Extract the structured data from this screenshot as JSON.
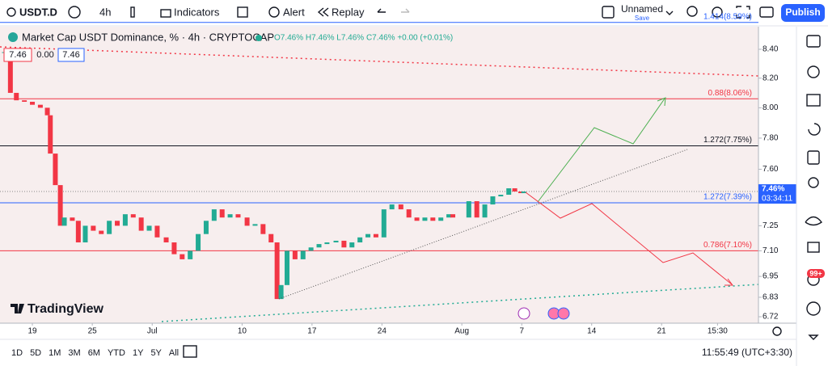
{
  "toolbar": {
    "symbol": "USDT.D",
    "interval": "4h",
    "indicators": "Indicators",
    "alert": "Alert",
    "replay": "Replay",
    "layout_name": "Unnamed",
    "save": "Save",
    "publish": "Publish"
  },
  "legend": {
    "title": "Market Cap USDT Dominance, % · 4h · CRYPTOCAP",
    "ohlc": "O7.46% H7.46% L7.46% C7.46% +0.00 (+0.01%)",
    "boxes": [
      "7.46",
      "0.00",
      "7.46"
    ]
  },
  "chart_data": {
    "type": "candlestick",
    "log_scale": true,
    "x": [
      -2.8,
      -2.2,
      -1.6,
      -0.8,
      0,
      0.8,
      1.5,
      1.8,
      2.3,
      2.8,
      3.2,
      4.0,
      4.6,
      5.3,
      6.1,
      6.9,
      7.7,
      8.5,
      9.3,
      10.1,
      10.9,
      11.7,
      12.5,
      13.4,
      14.2,
      15.0,
      15.8,
      16.6,
      17.4,
      18.2,
      19.0,
      19.8,
      20.6,
      21.5,
      22.3,
      23.1,
      23.9,
      24.5,
      24.9,
      25.5,
      26.3,
      27.1,
      27.9,
      28.7,
      29.5,
      30.4,
      31.2,
      32.0,
      32.8,
      33.6,
      34.4,
      35.2,
      36.0,
      36.9,
      37.7,
      38.5,
      39.3,
      40.1,
      40.9,
      41.7,
      42.1,
      43.7,
      44.5,
      45.3,
      46.1,
      46.9,
      47.7,
      48.3,
      48.9,
      49.2
    ],
    "values": [
      8.38,
      8.1,
      8.05,
      8.04,
      8.02,
      8.0,
      7.95,
      7.7,
      7.5,
      7.25,
      7.3,
      7.28,
      7.15,
      7.25,
      7.22,
      7.2,
      7.28,
      7.25,
      7.32,
      7.3,
      7.22,
      7.25,
      7.18,
      7.15,
      7.08,
      7.05,
      7.1,
      7.2,
      7.28,
      7.35,
      7.3,
      7.32,
      7.3,
      7.25,
      7.26,
      7.2,
      7.15,
      6.82,
      6.9,
      7.1,
      7.05,
      7.1,
      7.12,
      7.14,
      7.15,
      7.16,
      7.12,
      7.15,
      7.18,
      7.2,
      7.18,
      7.35,
      7.38,
      7.35,
      7.3,
      7.28,
      7.3,
      7.28,
      7.3,
      7.32,
      7.3,
      7.4,
      7.3,
      7.38,
      7.43,
      7.44,
      7.48,
      7.46,
      7.45,
      7.46
    ],
    "up_color": "#22ab94",
    "down_color": "#f23645",
    "xlim": [
      -3.24,
      72.7
    ],
    "xticks": [
      {
        "value": 0,
        "label": "19"
      },
      {
        "value": 6,
        "label": "25"
      },
      {
        "value": 12,
        "label": "Jul"
      },
      {
        "value": 21,
        "label": "10"
      },
      {
        "value": 28,
        "label": "17"
      },
      {
        "value": 35,
        "label": "24"
      },
      {
        "value": 43,
        "label": "Aug"
      },
      {
        "value": 49,
        "label": "7"
      },
      {
        "value": 56,
        "label": "14"
      },
      {
        "value": 63,
        "label": "21"
      },
      {
        "value": 68.6,
        "label": "15:30"
      }
    ],
    "ylim": [
      6.684,
      8.56
    ],
    "yticks": [
      {
        "value": 8.4,
        "label": "8.40"
      },
      {
        "value": 8.2,
        "label": "8.20"
      },
      {
        "value": 8.0,
        "label": "8.00"
      },
      {
        "value": 7.8,
        "label": "7.80"
      },
      {
        "value": 7.6,
        "label": "7.60"
      },
      7.25,
      {
        "value": 7.1,
        "label": "7.10"
      },
      6.95,
      6.83,
      6.72
    ],
    "levels": [
      {
        "value": 8.59,
        "label": "1.414(8.59%)",
        "color": "#2962ff"
      },
      {
        "value": 8.06,
        "label": "0.88(8.06%)",
        "color": "#f23645"
      },
      {
        "value": 7.75,
        "label": "1.272(7.75%)",
        "color": "#131722"
      },
      {
        "value": 7.39,
        "label": "1.272(7.39%)",
        "color": "#2962ff"
      },
      {
        "value": 7.1,
        "label": "0.786(7.10%)",
        "color": "#f23645"
      }
    ],
    "current": {
      "value": 7.46,
      "label": "7.46%",
      "countdown": "03:34:11"
    }
  },
  "bottom": {
    "ranges": [
      "1D",
      "5D",
      "1M",
      "3M",
      "6M",
      "YTD",
      "1Y",
      "5Y",
      "All"
    ],
    "clock": "11:55:49 (UTC+3:30)"
  },
  "brand": "TradingView",
  "badge": "99+"
}
